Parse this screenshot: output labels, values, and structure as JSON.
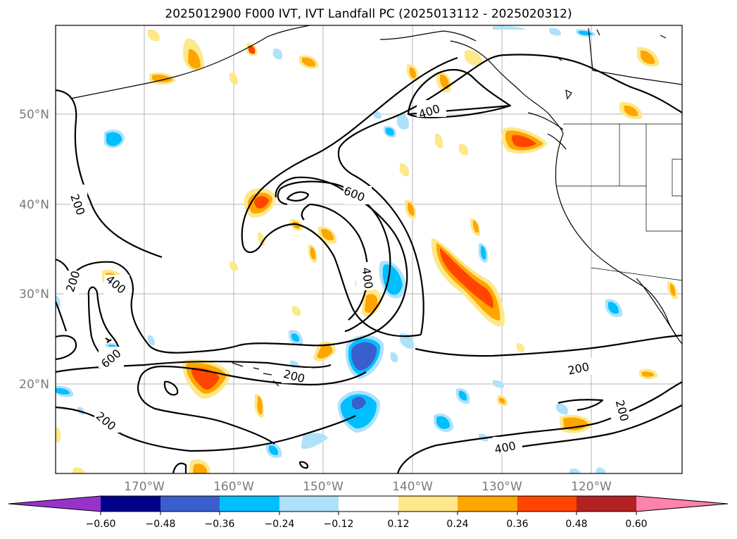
{
  "title": "2025012900 F000 IVT, IVT Landfall PC (2025013112 - 2025020312)",
  "colors": {
    "neg_060": "#9932cc",
    "neg_048": "#00008b",
    "neg_036": "#3a5fcd",
    "neg_024": "#00bfff",
    "neg_012": "#aee2fb",
    "zero": "#ffffff",
    "pos_012": "#fde88a",
    "pos_024": "#ffa500",
    "pos_036": "#ff4500",
    "pos_048": "#b22222",
    "pos_060": "#ff82ab"
  },
  "lon_labels": [
    "170°W",
    "160°W",
    "150°W",
    "140°W",
    "130°W",
    "120°W"
  ],
  "lat_labels": [
    "50°N",
    "40°N",
    "30°N",
    "20°N"
  ],
  "colorbar": {
    "tick_labels": [
      "−0.60",
      "−0.48",
      "−0.36",
      "−0.24",
      "−0.12",
      "0.12",
      "0.24",
      "0.36",
      "0.48",
      "0.60"
    ]
  },
  "contour_labels": {
    "l200_a": "200",
    "l200_b": "200",
    "l200_c": "200",
    "l200_d": "200",
    "l200_e": "200",
    "l200_f": "200",
    "l400_a": "400",
    "l400_b": "400",
    "l400_c": "400",
    "l400_d": "400",
    "l600_a": "600",
    "l600_b": "600"
  }
}
